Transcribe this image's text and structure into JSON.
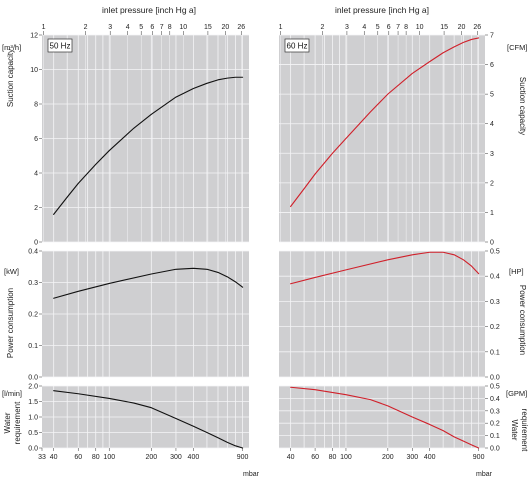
{
  "colors": {
    "plot_bg": "#cfcfd1",
    "grid": "#f4f4f6",
    "curve_50hz": "#111111",
    "curve_60hz": "#d0202a",
    "axis": "#555555"
  },
  "texts": {
    "top_axis_title_left": "inlet pressure [inch Hg a]",
    "top_axis_title_right": "inlet pressure [inch Hg a]",
    "bottom_axis_unit_left": "mbar",
    "bottom_axis_unit_right": "mbar",
    "ylabel_capacity": "Suction capacity",
    "ylabel_power": "Power consumption",
    "ylabel_water": [
      "Water",
      "requirement"
    ],
    "unit_capacity_left": "[m³/h]",
    "unit_capacity_right": "[CFM]",
    "unit_power_left": "[kW]",
    "unit_power_right": "[HP]",
    "unit_water_left": "[l/min]",
    "unit_water_right": "[GPM]",
    "hz_left": "50 Hz",
    "hz_right": "60 Hz"
  },
  "chart_data": [
    {
      "type": "line",
      "panel": "suction-capacity-50hz",
      "x_scale": "log",
      "xlim": [
        33,
        1000
      ],
      "ylim": [
        0,
        12
      ],
      "yticks": [
        0,
        2,
        4,
        6,
        8,
        10,
        12
      ],
      "series": [
        {
          "name": "50 Hz",
          "x": [
            40,
            50,
            60,
            80,
            100,
            150,
            200,
            300,
            400,
            500,
            600,
            700,
            800,
            900
          ],
          "y": [
            1.6,
            2.6,
            3.4,
            4.5,
            5.3,
            6.6,
            7.4,
            8.4,
            8.9,
            9.2,
            9.4,
            9.5,
            9.55,
            9.55
          ]
        }
      ]
    },
    {
      "type": "line",
      "panel": "suction-capacity-60hz",
      "x_scale": "log",
      "xlim": [
        33,
        1000
      ],
      "ylim": [
        0,
        7
      ],
      "yticks": [
        0,
        1,
        2,
        3,
        4,
        5,
        6,
        7
      ],
      "series": [
        {
          "name": "60 Hz",
          "x": [
            40,
            50,
            60,
            80,
            100,
            150,
            200,
            300,
            400,
            500,
            600,
            700,
            800,
            900
          ],
          "y": [
            1.2,
            1.8,
            2.3,
            3.0,
            3.5,
            4.4,
            5.0,
            5.7,
            6.1,
            6.4,
            6.6,
            6.75,
            6.85,
            6.9
          ]
        }
      ]
    },
    {
      "type": "line",
      "panel": "power-consumption-50hz",
      "x_scale": "log",
      "xlim": [
        33,
        1000
      ],
      "ylim": [
        0,
        0.4
      ],
      "yticks": [
        0,
        0.1,
        0.2,
        0.3,
        0.4
      ],
      "series": [
        {
          "name": "50 Hz",
          "x": [
            40,
            60,
            100,
            200,
            300,
            400,
            500,
            600,
            700,
            800,
            900
          ],
          "y": [
            0.25,
            0.272,
            0.297,
            0.327,
            0.342,
            0.345,
            0.342,
            0.332,
            0.318,
            0.302,
            0.285
          ]
        }
      ]
    },
    {
      "type": "line",
      "panel": "power-consumption-60hz",
      "x_scale": "log",
      "xlim": [
        33,
        1000
      ],
      "ylim": [
        0,
        0.5
      ],
      "yticks": [
        0,
        0.1,
        0.2,
        0.3,
        0.4,
        0.5
      ],
      "series": [
        {
          "name": "60 Hz",
          "x": [
            40,
            60,
            100,
            200,
            300,
            400,
            500,
            600,
            700,
            800,
            900
          ],
          "y": [
            0.37,
            0.395,
            0.425,
            0.465,
            0.485,
            0.495,
            0.495,
            0.485,
            0.465,
            0.44,
            0.41
          ]
        }
      ]
    },
    {
      "type": "line",
      "panel": "water-requirement-50hz",
      "x_scale": "log",
      "xlim": [
        33,
        1000
      ],
      "ylim": [
        0,
        2.0
      ],
      "yticks": [
        0,
        0.5,
        1.0,
        1.5,
        2.0
      ],
      "series": [
        {
          "name": "50 Hz",
          "x": [
            40,
            60,
            100,
            150,
            200,
            300,
            400,
            500,
            600,
            700,
            800,
            900
          ],
          "y": [
            1.85,
            1.75,
            1.6,
            1.45,
            1.3,
            0.95,
            0.7,
            0.5,
            0.33,
            0.18,
            0.07,
            0.0
          ]
        }
      ]
    },
    {
      "type": "line",
      "panel": "water-requirement-60hz",
      "x_scale": "log",
      "xlim": [
        33,
        1000
      ],
      "ylim": [
        0,
        0.5
      ],
      "yticks": [
        0,
        0.1,
        0.2,
        0.3,
        0.4,
        0.5
      ],
      "series": [
        {
          "name": "60 Hz",
          "x": [
            40,
            60,
            100,
            150,
            200,
            300,
            400,
            500,
            600,
            700,
            800,
            900
          ],
          "y": [
            0.49,
            0.47,
            0.43,
            0.39,
            0.34,
            0.25,
            0.19,
            0.14,
            0.09,
            0.055,
            0.025,
            0.0
          ]
        }
      ]
    }
  ],
  "x_axis": {
    "ticks_left": [
      "33",
      "40",
      "60",
      "80",
      "100",
      "200",
      "300",
      "400",
      "900"
    ],
    "ticks_right": [
      "40",
      "60",
      "80",
      "100",
      "200",
      "300",
      "400",
      "900"
    ],
    "tick_values_left": [
      33,
      40,
      60,
      80,
      100,
      200,
      300,
      400,
      900
    ],
    "tick_values_right": [
      40,
      60,
      80,
      100,
      200,
      300,
      400,
      900
    ],
    "grid_values": [
      40,
      50,
      60,
      70,
      80,
      90,
      100,
      200,
      300,
      400,
      500,
      600,
      700,
      800,
      900
    ]
  },
  "top_axis": {
    "ticks": [
      "1",
      "2",
      "3",
      "4",
      "5",
      "6",
      "7",
      "8",
      "10",
      "15",
      "20",
      "26"
    ],
    "tick_values_inHg": [
      1,
      2,
      3,
      4,
      5,
      6,
      7,
      8,
      10,
      15,
      20,
      26
    ]
  }
}
